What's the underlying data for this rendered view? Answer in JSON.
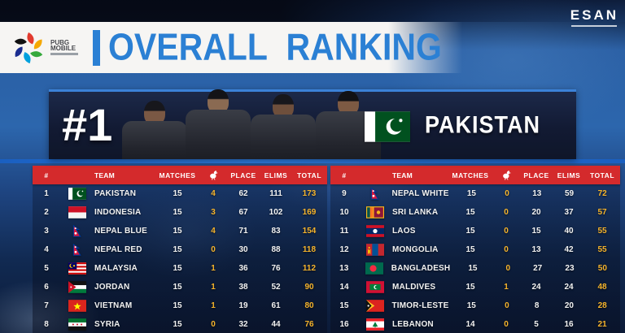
{
  "header": {
    "logo_title": "PUBG MOBILE",
    "title": "OVERALL RANKING",
    "brand": "ESAN"
  },
  "winner_card": {
    "rank": "#1",
    "team_name": "PAKISTAN",
    "flag": "pakistan",
    "players_count": 4
  },
  "columns": {
    "rank": "#",
    "team": "TEAM",
    "matches": "MATCHES",
    "wwcd_icon": "chicken-dinner-icon",
    "place": "PLACE",
    "elims": "ELIMS",
    "total": "TOTAL"
  },
  "colors": {
    "header_red": "#d42a2c",
    "accent_yellow": "#f6b42c",
    "title_blue": "#2b80d4"
  },
  "standings": {
    "left": [
      {
        "rank": 1,
        "flag": "pakistan",
        "team": "PAKISTAN",
        "matches": 15,
        "wwcd": 4,
        "place": 62,
        "elims": 111,
        "total": 173
      },
      {
        "rank": 2,
        "flag": "indonesia",
        "team": "INDONESIA",
        "matches": 15,
        "wwcd": 3,
        "place": 67,
        "elims": 102,
        "total": 169
      },
      {
        "rank": 3,
        "flag": "nepal",
        "team": "NEPAL BLUE",
        "matches": 15,
        "wwcd": 4,
        "place": 71,
        "elims": 83,
        "total": 154
      },
      {
        "rank": 4,
        "flag": "nepal",
        "team": "NEPAL RED",
        "matches": 15,
        "wwcd": 0,
        "place": 30,
        "elims": 88,
        "total": 118
      },
      {
        "rank": 5,
        "flag": "malaysia",
        "team": "MALAYSIA",
        "matches": 15,
        "wwcd": 1,
        "place": 36,
        "elims": 76,
        "total": 112
      },
      {
        "rank": 6,
        "flag": "jordan",
        "team": "JORDAN",
        "matches": 15,
        "wwcd": 1,
        "place": 38,
        "elims": 52,
        "total": 90
      },
      {
        "rank": 7,
        "flag": "vietnam",
        "team": "VIETNAM",
        "matches": 15,
        "wwcd": 1,
        "place": 19,
        "elims": 61,
        "total": 80
      },
      {
        "rank": 8,
        "flag": "syria",
        "team": "SYRIA",
        "matches": 15,
        "wwcd": 0,
        "place": 32,
        "elims": 44,
        "total": 76
      }
    ],
    "right": [
      {
        "rank": 9,
        "flag": "nepal",
        "team": "NEPAL WHITE",
        "matches": 15,
        "wwcd": 0,
        "place": 13,
        "elims": 59,
        "total": 72
      },
      {
        "rank": 10,
        "flag": "srilanka",
        "team": "SRI LANKA",
        "matches": 15,
        "wwcd": 0,
        "place": 20,
        "elims": 37,
        "total": 57
      },
      {
        "rank": 11,
        "flag": "laos",
        "team": "LAOS",
        "matches": 15,
        "wwcd": 0,
        "place": 15,
        "elims": 40,
        "total": 55
      },
      {
        "rank": 12,
        "flag": "mongolia",
        "team": "MONGOLIA",
        "matches": 15,
        "wwcd": 0,
        "place": 13,
        "elims": 42,
        "total": 55
      },
      {
        "rank": 13,
        "flag": "bangladesh",
        "team": "BANGLADESH",
        "matches": 15,
        "wwcd": 0,
        "place": 27,
        "elims": 23,
        "total": 50
      },
      {
        "rank": 14,
        "flag": "maldives",
        "team": "MALDIVES",
        "matches": 15,
        "wwcd": 1,
        "place": 24,
        "elims": 24,
        "total": 48
      },
      {
        "rank": 15,
        "flag": "timorleste",
        "team": "TIMOR-LESTE",
        "matches": 15,
        "wwcd": 0,
        "place": 8,
        "elims": 20,
        "total": 28
      },
      {
        "rank": 16,
        "flag": "lebanon",
        "team": "LEBANON",
        "matches": 14,
        "wwcd": 0,
        "place": 5,
        "elims": 16,
        "total": 21
      }
    ]
  }
}
